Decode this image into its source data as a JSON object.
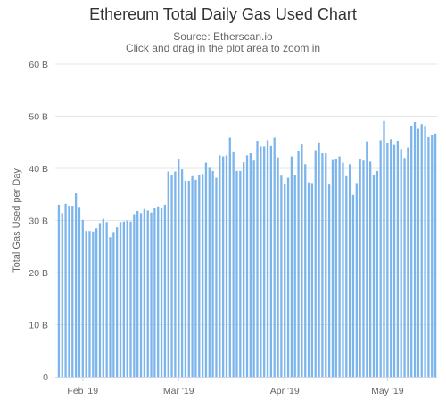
{
  "chart_data": {
    "type": "bar",
    "title": "Ethereum Total Daily Gas Used Chart",
    "subtitle": "Source: Etherscan.io",
    "subtitle2": "Click and drag in the plot area to zoom in",
    "xlabel": "",
    "ylabel": "Total Gas Used per Day",
    "ylim": [
      0,
      60000000000
    ],
    "y_ticks": [
      {
        "value": 0,
        "label": "0"
      },
      {
        "value": 10000000000,
        "label": "10 B"
      },
      {
        "value": 20000000000,
        "label": "20 B"
      },
      {
        "value": 30000000000,
        "label": "30 B"
      },
      {
        "value": 40000000000,
        "label": "40 B"
      },
      {
        "value": 50000000000,
        "label": "50 B"
      },
      {
        "value": 60000000000,
        "label": "60 B"
      }
    ],
    "x_ticks": [
      {
        "date": "2019-02-01",
        "label": "Feb '19"
      },
      {
        "date": "2019-03-01",
        "label": "Mar '19"
      },
      {
        "date": "2019-04-01",
        "label": "Apr '19"
      },
      {
        "date": "2019-05-01",
        "label": "May '19"
      }
    ],
    "start_date": "2019-01-25",
    "grid": true,
    "legend": false,
    "color": "#7cb5ec",
    "values_billion": [
      33,
      31.4,
      33.2,
      32.8,
      32.8,
      35.2,
      32.6,
      30.1,
      28,
      28,
      27.9,
      28.5,
      29.5,
      30.3,
      29.7,
      26.8,
      27.8,
      28.7,
      29.7,
      29.8,
      30,
      29.8,
      31.2,
      31.8,
      31.4,
      32.2,
      31.9,
      31.5,
      32.4,
      32.7,
      32.5,
      33,
      39.4,
      38.7,
      39.4,
      41.7,
      39.8,
      37.6,
      37.6,
      38.5,
      37.8,
      38.8,
      38.9,
      41.1,
      40.1,
      39.5,
      38.2,
      42.5,
      42.3,
      42.5,
      45.9,
      43.1,
      39.5,
      39.5,
      41.2,
      42.5,
      42.9,
      41.5,
      45.3,
      44.2,
      44.2,
      45.4,
      44.3,
      45.9,
      42.1,
      38.6,
      37.1,
      38.2,
      42.3,
      38.7,
      43.3,
      44.6,
      40.8,
      37.3,
      37.2,
      43.5,
      45,
      42.9,
      42.9,
      36.9,
      41.6,
      41.8,
      42.3,
      41.1,
      38.5,
      40.8,
      34.9,
      37.2,
      41.8,
      41.5,
      45.2,
      41.3,
      38.8,
      39.5,
      45.4,
      49.1,
      44.8,
      45.6,
      44.5,
      45.3,
      43.7,
      42,
      44,
      48.2,
      48.9,
      47.6,
      48.5,
      48,
      46,
      46.5,
      46.7
    ]
  }
}
